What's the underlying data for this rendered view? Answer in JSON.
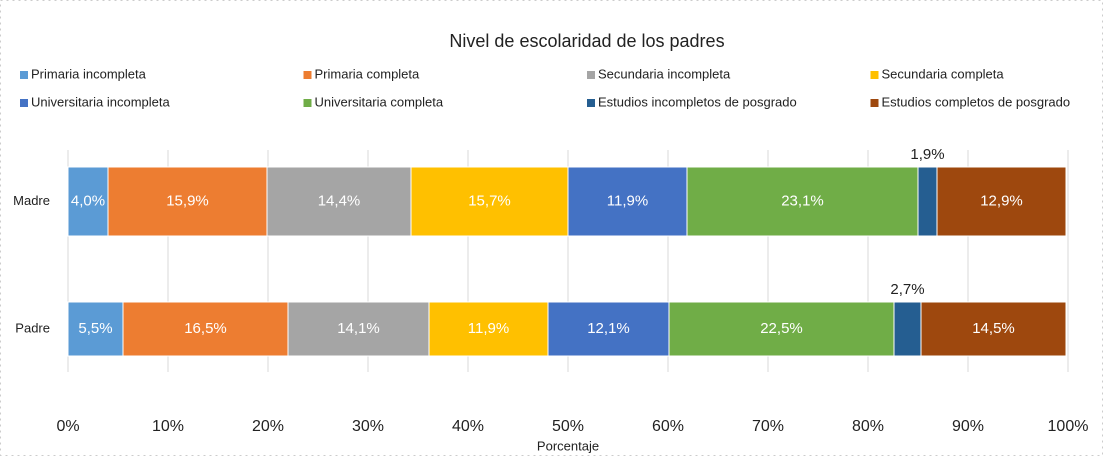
{
  "chart_data": {
    "type": "stacked_barh",
    "title": "Nivel de escolaridad de los padres",
    "xlabel": "Porcentaje",
    "categories": [
      "Madre",
      "Padre"
    ],
    "series": [
      {
        "name": "Primaria incompleta",
        "color": "#5b9bd5",
        "values": [
          4.0,
          5.5
        ],
        "value_labels": [
          "4,0%",
          "5,5%"
        ]
      },
      {
        "name": "Primaria completa",
        "color": "#ed7d31",
        "values": [
          15.9,
          16.5
        ],
        "value_labels": [
          "15,9%",
          "16,5%"
        ]
      },
      {
        "name": "Secundaria incompleta",
        "color": "#a5a5a5",
        "values": [
          14.4,
          14.1
        ],
        "value_labels": [
          "14,4%",
          "14,1%"
        ]
      },
      {
        "name": "Secundaria completa",
        "color": "#ffc000",
        "values": [
          15.7,
          11.9
        ],
        "value_labels": [
          "15,7%",
          "11,9%"
        ]
      },
      {
        "name": "Universitaria incompleta",
        "color": "#4472c4",
        "values": [
          11.9,
          12.1
        ],
        "value_labels": [
          "11,9%",
          "12,1%"
        ]
      },
      {
        "name": "Universitaria completa",
        "color": "#70ad47",
        "values": [
          23.1,
          22.5
        ],
        "value_labels": [
          "23,1%",
          "22,5%"
        ]
      },
      {
        "name": "Estudios incompletos de posgrado",
        "color": "#255e91",
        "values": [
          1.9,
          2.7
        ],
        "value_labels": [
          "1,9%",
          "2,7%"
        ]
      },
      {
        "name": "Estudios completos de posgrado",
        "color": "#9e480e",
        "values": [
          12.9,
          14.5
        ],
        "value_labels": [
          "12,9%",
          "14,5%"
        ]
      }
    ],
    "xlim": [
      0,
      100
    ],
    "xticks": [
      {
        "value": 0,
        "label": "0%"
      },
      {
        "value": 10,
        "label": "10%"
      },
      {
        "value": 20,
        "label": "20%"
      },
      {
        "value": 30,
        "label": "30%"
      },
      {
        "value": 40,
        "label": "40%"
      },
      {
        "value": 50,
        "label": "50%"
      },
      {
        "value": 60,
        "label": "60%"
      },
      {
        "value": 70,
        "label": "70%"
      },
      {
        "value": 80,
        "label": "80%"
      },
      {
        "value": 90,
        "label": "90%"
      },
      {
        "value": 100,
        "label": "100%"
      }
    ],
    "grid": true,
    "legend": "top"
  }
}
